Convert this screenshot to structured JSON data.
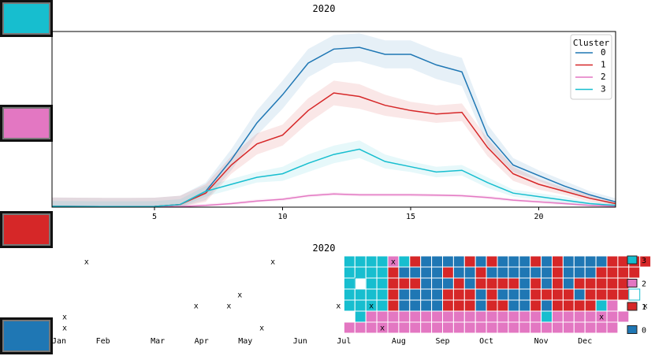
{
  "swatches": [
    {
      "cluster": "3",
      "color": "#17becf"
    },
    {
      "cluster": "2",
      "color": "#e377c2"
    },
    {
      "cluster": "1",
      "color": "#d62728"
    },
    {
      "cluster": "0",
      "color": "#1f77b4"
    }
  ],
  "chart_data": [
    {
      "type": "line",
      "title": "2020",
      "xlabel": "",
      "ylabel": "",
      "xlim": [
        1,
        23
      ],
      "ylim": [
        0,
        100
      ],
      "xticks": [
        5,
        10,
        15,
        20
      ],
      "legend": {
        "title": "Cluster",
        "position": "top-right",
        "entries": [
          "0",
          "1",
          "2",
          "3"
        ]
      },
      "x": [
        1,
        2,
        3,
        4,
        5,
        6,
        7,
        8,
        9,
        10,
        11,
        12,
        13,
        14,
        15,
        16,
        17,
        18,
        19,
        20,
        21,
        22,
        23
      ],
      "series": [
        {
          "name": "0",
          "color": "#1f77b4",
          "values": [
            0.5,
            0.4,
            0.3,
            0.3,
            0.4,
            1.5,
            9,
            27,
            48,
            64,
            82,
            90,
            91,
            87,
            87,
            81,
            77,
            41,
            24,
            18,
            12,
            7,
            3
          ],
          "band": [
            5,
            5,
            5,
            5,
            5,
            5,
            5,
            6,
            7,
            8,
            8,
            8,
            8,
            8,
            8,
            8,
            8,
            6,
            4,
            3,
            3,
            2,
            2
          ]
        },
        {
          "name": "1",
          "color": "#d62728",
          "values": [
            0.5,
            0.4,
            0.3,
            0.3,
            0.4,
            1.5,
            8,
            24,
            36,
            41,
            55,
            65,
            63,
            58,
            55,
            53,
            54,
            34,
            19,
            13,
            9,
            5,
            2
          ],
          "band": [
            5,
            5,
            5,
            5,
            5,
            5,
            5,
            5,
            6,
            6,
            7,
            7,
            7,
            6,
            5,
            5,
            5,
            5,
            4,
            3,
            2,
            2,
            1
          ]
        },
        {
          "name": "2",
          "color": "#e377c2",
          "values": [
            0.2,
            0.2,
            0.2,
            0.2,
            0.2,
            0.3,
            1,
            2,
            3.5,
            4.5,
            6.5,
            7.5,
            7,
            7,
            7,
            6.8,
            6.5,
            5.5,
            4,
            3,
            2,
            1,
            0.5
          ],
          "band": [
            1,
            1,
            1,
            1,
            1,
            1,
            1,
            1,
            1,
            1,
            1,
            1,
            1,
            1,
            1,
            1,
            1,
            1,
            1,
            1,
            1,
            1,
            1
          ]
        },
        {
          "name": "3",
          "color": "#17becf",
          "values": [
            0.5,
            0.4,
            0.3,
            0.3,
            0.4,
            1.5,
            9,
            13,
            17,
            19,
            25,
            30,
            33,
            26,
            23,
            20,
            21,
            14,
            8,
            6,
            4,
            2,
            1
          ],
          "band": [
            3,
            3,
            3,
            3,
            3,
            3,
            3,
            3,
            3,
            4,
            5,
            5,
            5,
            4,
            3,
            3,
            3,
            3,
            2,
            2,
            2,
            1,
            1
          ]
        }
      ]
    },
    {
      "type": "heatmap",
      "title": "2020",
      "x_tick_labels": [
        "Jan",
        "Feb",
        "Mar",
        "Apr",
        "May",
        "Jun",
        "Jul",
        "Aug",
        "Sep",
        "Oct",
        "Nov",
        "Dec"
      ],
      "x_tick_weeks": [
        0,
        4,
        9,
        13,
        17,
        22,
        26,
        31,
        35,
        39,
        44,
        48
      ],
      "weeks": 53,
      "rows": 7,
      "mark": "x",
      "legend": [
        {
          "label": "3",
          "color": "#17becf"
        },
        {
          "label": "2",
          "color": "#e377c2"
        },
        {
          "label": "1",
          "color": "#d62728"
        },
        {
          "label": "0",
          "color": "#1f77b4"
        }
      ],
      "rows_data": [
        "AAAA2A1000010100010100001111",
        "AAAA10000100100000010001111",
        "A.AA1110001011110101011111",
        "AAAA10000111010001111011113",
        "AAAA1000011101100101111AB",
        "A2222222222222222A2222222",
        "2222222222222222222222222"
      ],
      "row_offsets": [
        26,
        26,
        26,
        26,
        26,
        27,
        26
      ],
      "code_legend": {
        "0": "0",
        "1": "1",
        "2": "2",
        "A": "3",
        "B": "2",
        ".": "empty"
      },
      "x_marks": [
        {
          "week": 2,
          "row": 0
        },
        {
          "week": 19,
          "row": 0
        },
        {
          "week": 16,
          "row": 3
        },
        {
          "week": 12,
          "row": 4
        },
        {
          "week": 15,
          "row": 4
        },
        {
          "week": 25,
          "row": 4
        },
        {
          "week": 0,
          "row": 5
        },
        {
          "week": 0,
          "row": 6
        },
        {
          "week": 18,
          "row": 6
        },
        {
          "week": 30,
          "row": 0
        },
        {
          "week": 28,
          "row": 4
        },
        {
          "week": 29,
          "row": 6
        },
        {
          "week": 49,
          "row": 5
        },
        {
          "week": 53,
          "row": 4
        }
      ]
    }
  ]
}
